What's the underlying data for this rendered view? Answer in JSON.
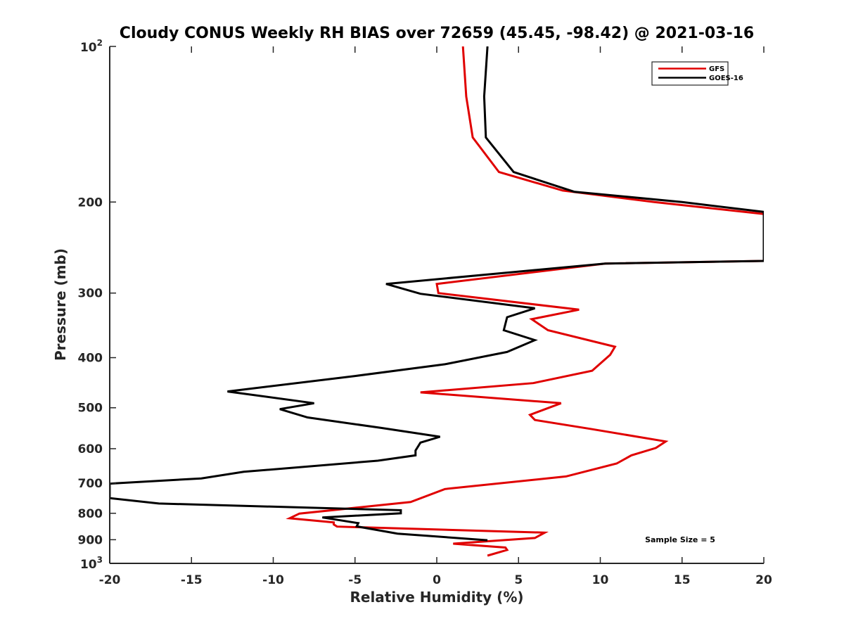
{
  "chart_data": {
    "type": "line",
    "title": "Cloudy CONUS Weekly RH BIAS over 72659 (45.45, -98.42) @ 2021-03-16",
    "xlabel": "Relative Humidity (%)",
    "ylabel": "Pressure (mb)",
    "xlim": [
      -20,
      20
    ],
    "ylim": [
      100,
      1000
    ],
    "y_scale": "log",
    "y_reversed": true,
    "x_ticks": [
      -20,
      -15,
      -10,
      -5,
      0,
      5,
      10,
      15,
      20
    ],
    "x_tick_labels": [
      "-20",
      "-15",
      "-10",
      "-5",
      "0",
      "5",
      "10",
      "15",
      "20"
    ],
    "y_ticks": [
      100,
      200,
      300,
      400,
      500,
      600,
      700,
      800,
      900,
      1000
    ],
    "y_tick_labels": [
      "",
      "200",
      "300",
      "400",
      "500",
      "600",
      "700",
      "800",
      "900",
      ""
    ],
    "y_power_labels": [
      {
        "value": 100,
        "base": "10",
        "exp": "2"
      },
      {
        "value": 1000,
        "base": "10",
        "exp": "3"
      }
    ],
    "grid": false,
    "legend_position": "top-right",
    "annotation": "Sample Size = 5",
    "series": [
      {
        "name": "GFS",
        "color": "#e00000",
        "points": [
          [
            1.6,
            100
          ],
          [
            1.8,
            125
          ],
          [
            2.2,
            150
          ],
          [
            3.8,
            175
          ],
          [
            7.7,
            190
          ],
          [
            13.3,
            200
          ],
          [
            20.0,
            211
          ],
          [
            20.0,
            260
          ],
          [
            10.3,
            263
          ],
          [
            0,
            288
          ],
          [
            0.1,
            300
          ],
          [
            8.7,
            323
          ],
          [
            5.8,
            337
          ],
          [
            6.8,
            354
          ],
          [
            10.9,
            381
          ],
          [
            10.6,
            395
          ],
          [
            9.5,
            424
          ],
          [
            5.9,
            448
          ],
          [
            -1.0,
            467
          ],
          [
            7.6,
            490
          ],
          [
            5.7,
            516
          ],
          [
            6.0,
            528
          ],
          [
            9.5,
            550
          ],
          [
            14.0,
            581
          ],
          [
            13.4,
            598
          ],
          [
            11.9,
            618
          ],
          [
            11.0,
            641
          ],
          [
            7.9,
            679
          ],
          [
            0.5,
            718
          ],
          [
            -1.6,
            761
          ],
          [
            -8.4,
            801
          ],
          [
            -9.0,
            818
          ],
          [
            -6.3,
            833
          ],
          [
            -6.3,
            841
          ],
          [
            -6.1,
            849
          ],
          [
            6.6,
            872
          ],
          [
            6.0,
            893
          ],
          [
            1.0,
            916
          ],
          [
            4.2,
            932
          ],
          [
            4.3,
            942
          ],
          [
            3.1,
            966
          ]
        ]
      },
      {
        "name": "GOES-16",
        "color": "#000000",
        "points": [
          [
            3.1,
            100
          ],
          [
            2.9,
            125
          ],
          [
            3.0,
            150
          ],
          [
            4.7,
            175
          ],
          [
            8.4,
            191
          ],
          [
            15.0,
            200
          ],
          [
            20.0,
            209
          ],
          [
            20.0,
            260
          ],
          [
            10.3,
            263
          ],
          [
            -3.1,
            288
          ],
          [
            -1.0,
            301
          ],
          [
            6.0,
            321
          ],
          [
            4.3,
            334
          ],
          [
            4.1,
            354
          ],
          [
            6.0,
            370
          ],
          [
            4.3,
            390
          ],
          [
            0.5,
            412
          ],
          [
            -5.0,
            434
          ],
          [
            -12.8,
            465
          ],
          [
            -7.5,
            490
          ],
          [
            -9.6,
            503
          ],
          [
            -7.9,
            522
          ],
          [
            -3.4,
            547
          ],
          [
            0.2,
            569
          ],
          [
            -1.0,
            584
          ],
          [
            -1.3,
            605
          ],
          [
            -1.3,
            618
          ],
          [
            -3.6,
            633
          ],
          [
            -11.8,
            665
          ],
          [
            -14.4,
            685
          ],
          [
            -20.0,
            701
          ],
          [
            -20.0,
            748
          ],
          [
            -17.0,
            766
          ],
          [
            -2.2,
            789
          ],
          [
            -2.2,
            800
          ],
          [
            -7.0,
            815
          ],
          [
            -4.8,
            836
          ],
          [
            -4.9,
            848
          ],
          [
            -2.4,
            876
          ],
          [
            3.1,
            902
          ]
        ]
      }
    ]
  }
}
